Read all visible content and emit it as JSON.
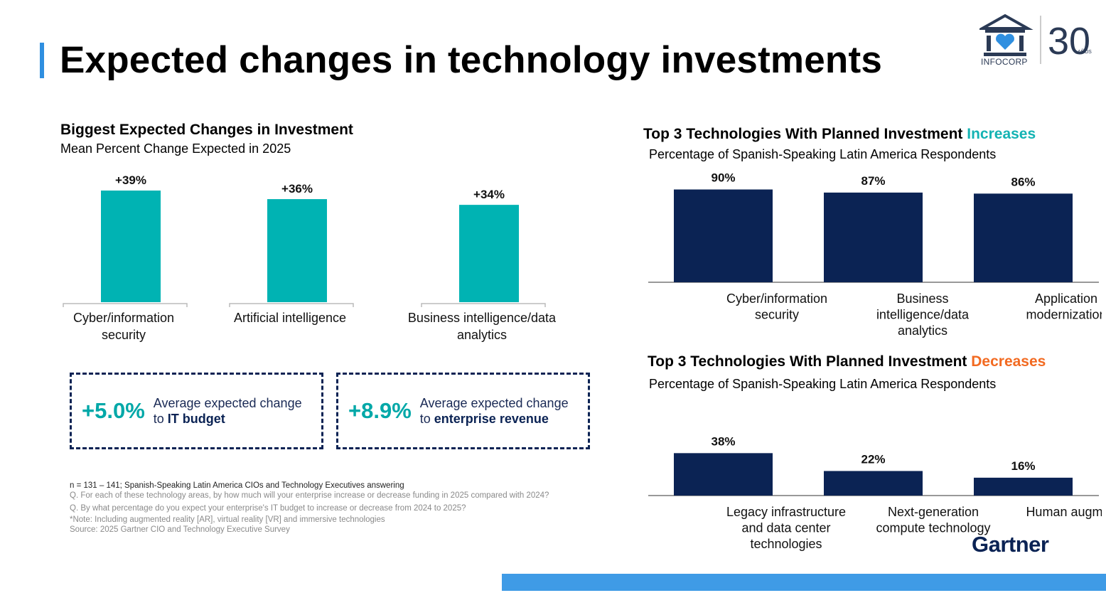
{
  "page": {
    "title": "Expected changes in technology investments",
    "accent_color": "#2f8fe0",
    "bottom_bar_color": "#3f9be6"
  },
  "logo": {
    "org_name": "INFOCORP",
    "anniversary": "30",
    "anniversary_suffix": "AÑOS"
  },
  "left_chart": {
    "title": "Biggest Expected Changes in Investment",
    "subtitle": "Mean Percent Change Expected in 2025"
  },
  "kpis": [
    {
      "value": "+5.0%",
      "text": "Average expected change",
      "prefix": "to ",
      "emph": "IT budget"
    },
    {
      "value": "+8.9%",
      "text": "Average expected change",
      "prefix": "to ",
      "emph": "enterprise revenue"
    }
  ],
  "footnotes": {
    "n": "n = 131 – 141; Spanish-Speaking Latin America CIOs and Technology Executives answering",
    "q1": "Q. For each of these technology areas, by how much will your enterprise increase or decrease funding in 2025 compared with 2024?",
    "q2": "Q. By what percentage do you expect your enterprise's IT budget to increase or decrease from 2024 to 2025?",
    "note": "*Note: Including augmented reality [AR], virtual reality [VR] and immersive technologies",
    "source": "Source: 2025 Gartner CIO and Technology Executive Survey"
  },
  "increase_chart": {
    "title": "Top 3 Technologies With Planned Investment ",
    "title_highlight": "Increases",
    "highlight_color": "#14b3b3",
    "subtitle": "Percentage of Spanish-Speaking Latin America Respondents"
  },
  "decrease_chart": {
    "title": "Top 3 Technologies With Planned Investment ",
    "title_highlight": "Decreases",
    "highlight_color": "#f26a21",
    "subtitle": "Percentage of Spanish-Speaking Latin America Respondents"
  },
  "brand": {
    "gartner": "Gartner"
  },
  "chart_data": [
    {
      "type": "bar",
      "title": "Biggest Expected Changes in Investment",
      "subtitle": "Mean Percent Change Expected in 2025",
      "categories": [
        [
          "Cyber/information",
          "security"
        ],
        [
          "Artificial intelligence"
        ],
        [
          "Business intelligence/data",
          "analytics"
        ]
      ],
      "values": [
        39,
        36,
        34
      ],
      "value_labels": [
        "+39%",
        "+36%",
        "+34%"
      ],
      "color": "#00b3b3",
      "ylim": [
        0,
        40
      ]
    },
    {
      "type": "bar",
      "title": "Top 3 Technologies With Planned Investment Increases",
      "subtitle": "Percentage of Spanish-Speaking Latin America Respondents",
      "categories": [
        [
          "Cyber/information",
          "security"
        ],
        [
          "Business",
          "intelligence/data",
          "analytics"
        ],
        [
          "Application",
          "modernization"
        ]
      ],
      "values": [
        90,
        87,
        86
      ],
      "value_labels": [
        "90%",
        "87%",
        "86%"
      ],
      "color": "#0b2354",
      "ylim": [
        0,
        100
      ]
    },
    {
      "type": "bar",
      "title": "Top 3 Technologies With Planned Investment Decreases",
      "subtitle": "Percentage of Spanish-Speaking Latin America Respondents",
      "categories": [
        [
          "Legacy infrastructure",
          "and data center",
          "technologies"
        ],
        [
          "Next-generation",
          "compute technology"
        ],
        [
          "Human augmentation*"
        ]
      ],
      "values": [
        38,
        22,
        16
      ],
      "value_labels": [
        "38%",
        "22%",
        "16%"
      ],
      "color": "#0b2354",
      "ylim": [
        0,
        100
      ]
    }
  ]
}
